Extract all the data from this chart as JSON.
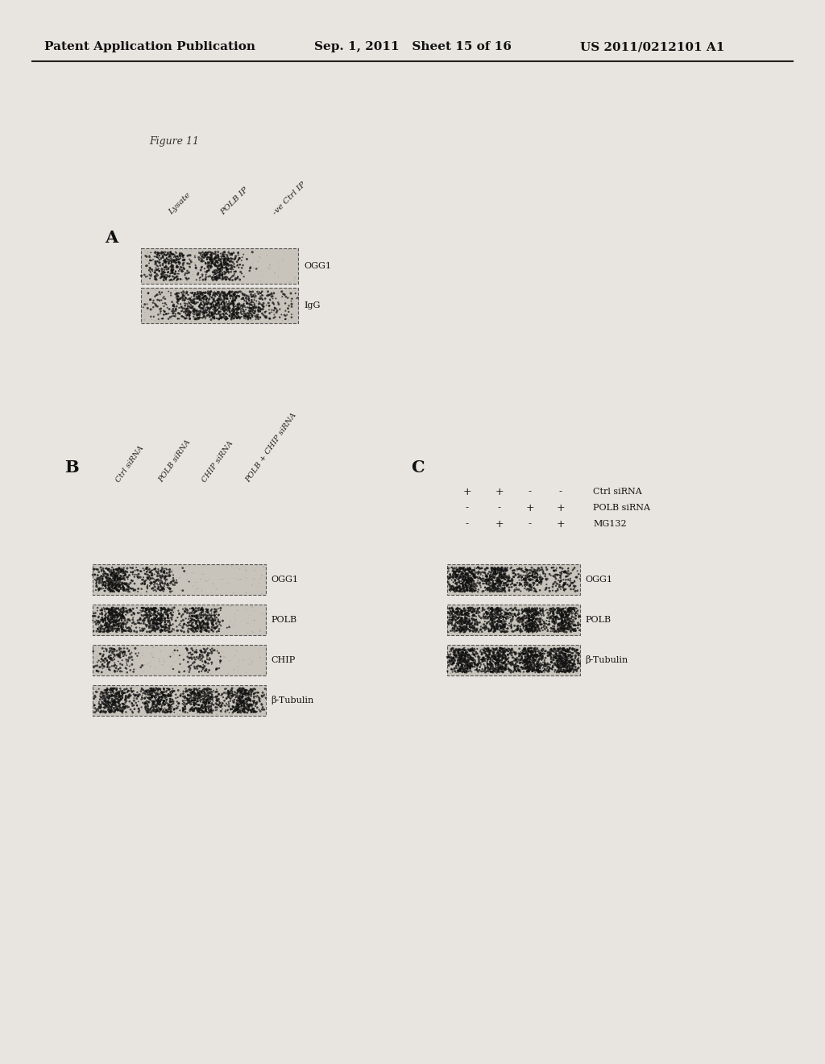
{
  "page_header_left": "Patent Application Publication",
  "page_header_mid": "Sep. 1, 2011   Sheet 15 of 16",
  "page_header_right": "US 2011/0212101 A1",
  "figure_label": "Figure 11",
  "panel_A_label": "A",
  "panel_A_col_labels": [
    "Lysate",
    "POLB IP",
    "-ve Ctrl IP"
  ],
  "panel_A_row_labels": [
    "OGG1",
    "IgG"
  ],
  "panel_B_label": "B",
  "panel_B_col_labels": [
    "Ctrl siRNA",
    "POLB siRNA",
    "CHIP siRNA",
    "POLB + CHIP siRNA"
  ],
  "panel_B_row_labels": [
    "OGG1",
    "POLB",
    "CHIP",
    "β-Tubulin"
  ],
  "panel_C_label": "C",
  "panel_C_row1": [
    "+",
    "+",
    "-",
    "-"
  ],
  "panel_C_row1_label": "Ctrl siRNA",
  "panel_C_row2": [
    "-",
    "-",
    "+",
    "+"
  ],
  "panel_C_row2_label": "POLB siRNA",
  "panel_C_row3": [
    "-",
    "+",
    "-",
    "+"
  ],
  "panel_C_row3_label": "MG132",
  "panel_C_row_labels": [
    "OGG1",
    "POLB",
    "β-Tubulin"
  ],
  "bg_color": "#e8e5e0",
  "blot_bg": "#c8c5be",
  "dark": "#1a1a1a",
  "header_fontsize": 11,
  "label_fontsize": 9,
  "small_fontsize": 8
}
